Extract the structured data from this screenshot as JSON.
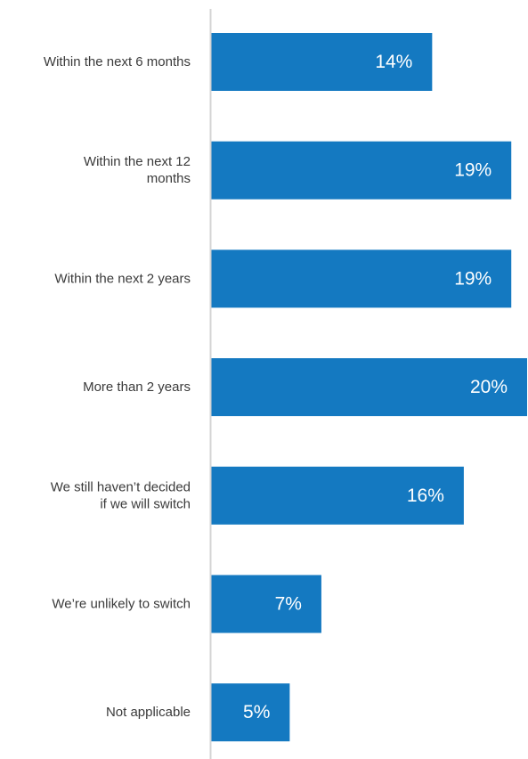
{
  "chart_data": {
    "type": "bar",
    "orientation": "horizontal",
    "categories": [
      "Within the next 6 months",
      "Within the next 12 months",
      "Within the next 2 years",
      "More than 2 years",
      "We still haven’t decided if we will switch",
      "We’re unlikely to switch",
      "Not applicable"
    ],
    "category_lines": [
      [
        "Within the next 6 months"
      ],
      [
        "Within the next 12",
        "months"
      ],
      [
        "Within the next 2 years"
      ],
      [
        "More than 2 years"
      ],
      [
        "We still haven’t decided",
        "if we will switch"
      ],
      [
        "We’re unlikely to switch"
      ],
      [
        "Not applicable"
      ]
    ],
    "values": [
      14,
      19,
      19,
      20,
      16,
      7,
      5
    ],
    "data_labels": [
      "14%",
      "19%",
      "19%",
      "20%",
      "16%",
      "7%",
      "5%"
    ],
    "bar_color": "#1479c1",
    "axis_color": "#d4d4d4",
    "xlim": [
      0,
      20
    ],
    "grid": false,
    "legend": "none"
  }
}
